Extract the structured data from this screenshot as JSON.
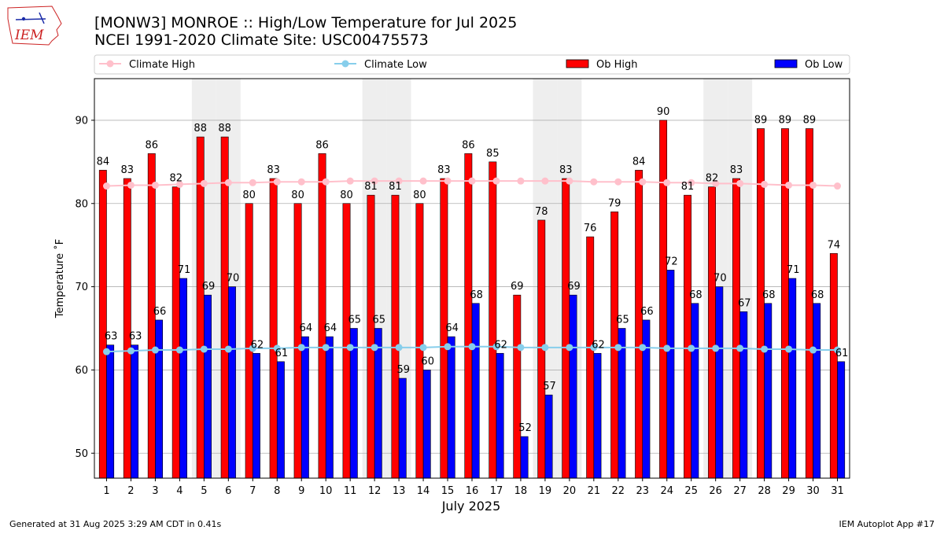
{
  "title_line1": "[MONW3] MONROE :: High/Low Temperature for Jul 2025",
  "title_line2": "NCEI 1991-2020 Climate Site: USC00475573",
  "footer_left": "Generated at 31 Aug 2025 3:29 AM CDT in 0.41s",
  "footer_right": "IEM Autoplot App #17",
  "logo_text": "IEM",
  "colors": {
    "ob_high": "#ff0000",
    "ob_low": "#0000ff",
    "climate_high": "#ffc0cb",
    "climate_low": "#87ceeb",
    "weekend_shade": "#eeeeee",
    "grid": "#b0b0b0",
    "logo": "#cc2222"
  },
  "chart_data": {
    "type": "bar",
    "xlabel": "July 2025",
    "ylabel": "Temperature ˚F",
    "ylim": [
      47,
      95
    ],
    "yticks": [
      50,
      60,
      70,
      80,
      90
    ],
    "grid": "horizontal",
    "legend_position": "top",
    "legend": [
      "Climate High",
      "Climate Low",
      "Ob High",
      "Ob Low"
    ],
    "categories": [
      "1",
      "2",
      "3",
      "4",
      "5",
      "6",
      "7",
      "8",
      "9",
      "10",
      "11",
      "12",
      "13",
      "14",
      "15",
      "16",
      "17",
      "18",
      "19",
      "20",
      "21",
      "22",
      "23",
      "24",
      "25",
      "26",
      "27",
      "28",
      "29",
      "30",
      "31"
    ],
    "shaded_days": [
      5,
      6,
      12,
      13,
      19,
      20,
      26,
      27
    ],
    "series": [
      {
        "name": "Ob High",
        "type": "bar",
        "values": [
          84,
          83,
          86,
          82,
          88,
          88,
          80,
          83,
          80,
          86,
          80,
          81,
          81,
          80,
          83,
          86,
          85,
          69,
          78,
          83,
          76,
          79,
          84,
          90,
          81,
          82,
          83,
          89,
          89,
          89,
          74
        ]
      },
      {
        "name": "Ob Low",
        "type": "bar",
        "values": [
          63,
          63,
          66,
          71,
          69,
          70,
          62,
          61,
          64,
          64,
          65,
          65,
          59,
          60,
          64,
          68,
          62,
          52,
          57,
          69,
          62,
          65,
          66,
          72,
          68,
          70,
          67,
          68,
          71,
          68,
          61
        ]
      },
      {
        "name": "Climate High",
        "type": "line",
        "values": [
          82.1,
          82.2,
          82.2,
          82.3,
          82.4,
          82.5,
          82.5,
          82.6,
          82.6,
          82.6,
          82.7,
          82.7,
          82.7,
          82.7,
          82.7,
          82.7,
          82.7,
          82.7,
          82.7,
          82.7,
          82.6,
          82.6,
          82.6,
          82.5,
          82.5,
          82.4,
          82.4,
          82.3,
          82.2,
          82.2,
          82.1
        ]
      },
      {
        "name": "Climate Low",
        "type": "line",
        "values": [
          62.2,
          62.3,
          62.4,
          62.4,
          62.5,
          62.5,
          62.6,
          62.6,
          62.7,
          62.7,
          62.7,
          62.7,
          62.7,
          62.7,
          62.8,
          62.8,
          62.8,
          62.7,
          62.7,
          62.7,
          62.7,
          62.7,
          62.7,
          62.6,
          62.6,
          62.6,
          62.6,
          62.5,
          62.5,
          62.4,
          62.4
        ]
      }
    ]
  }
}
